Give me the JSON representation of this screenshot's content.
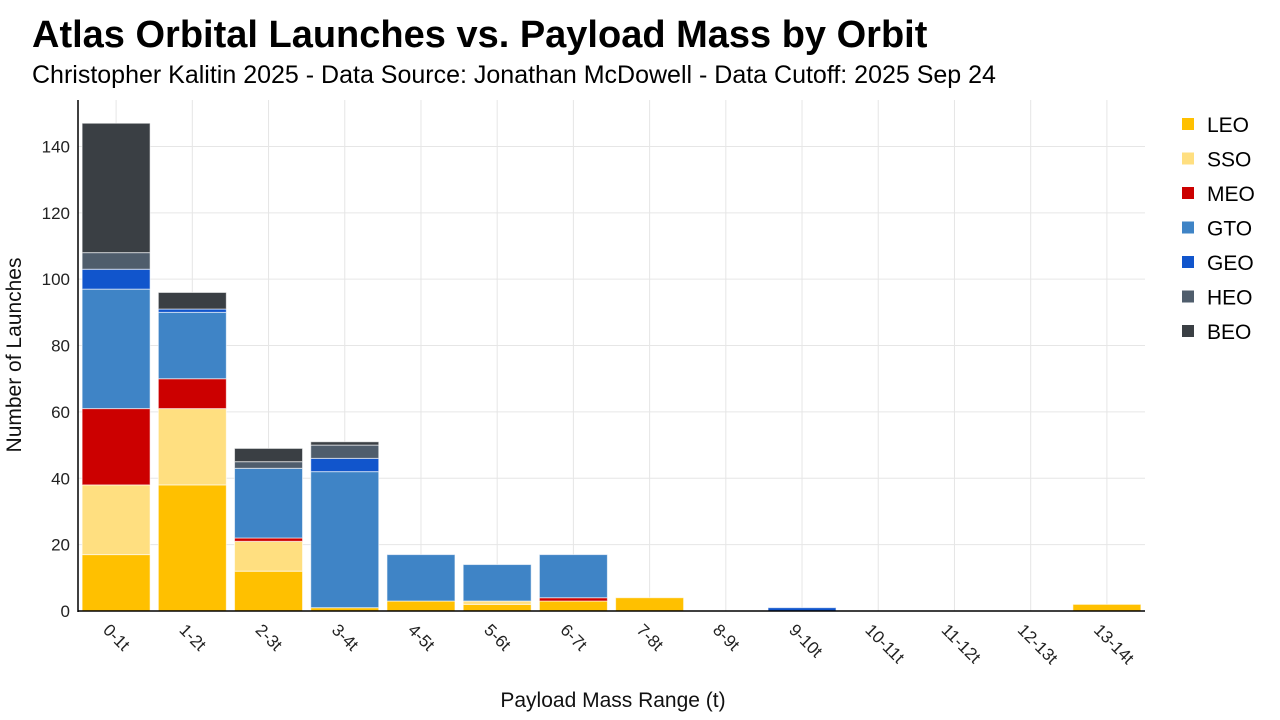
{
  "chart_data": {
    "type": "bar",
    "stacked": true,
    "title": "Atlas Orbital Launches vs. Payload Mass by Orbit",
    "subtitle": "Christopher Kalitin 2025 - Data Source: Jonathan McDowell - Data Cutoff: 2025 Sep 24",
    "xlabel": "Payload Mass Range (t)",
    "ylabel": "Number of Launches",
    "ylim": [
      0,
      154
    ],
    "yticks": [
      0,
      20,
      40,
      60,
      80,
      100,
      120,
      140
    ],
    "grid": true,
    "legend_position": "right",
    "categories": [
      "0-1t",
      "1-2t",
      "2-3t",
      "3-4t",
      "4-5t",
      "5-6t",
      "6-7t",
      "7-8t",
      "8-9t",
      "9-10t",
      "10-11t",
      "11-12t",
      "12-13t",
      "13-14t"
    ],
    "series": [
      {
        "name": "LEO",
        "color": "#FFC000",
        "values": [
          17,
          38,
          12,
          1,
          3,
          2,
          3,
          4,
          0,
          0,
          0,
          0,
          0,
          2
        ]
      },
      {
        "name": "SSO",
        "color": "#FFDF80",
        "values": [
          21,
          23,
          9,
          0,
          0,
          1,
          0,
          0,
          0,
          0,
          0,
          0,
          0,
          0
        ]
      },
      {
        "name": "MEO",
        "color": "#CC0000",
        "values": [
          23,
          9,
          1,
          0,
          0,
          0,
          1,
          0,
          0,
          0,
          0,
          0,
          0,
          0
        ]
      },
      {
        "name": "GTO",
        "color": "#3F84C6",
        "values": [
          36,
          20,
          21,
          41,
          14,
          11,
          13,
          0,
          0,
          0,
          0,
          0,
          0,
          0
        ]
      },
      {
        "name": "GEO",
        "color": "#1155CC",
        "values": [
          6,
          1,
          0,
          4,
          0,
          0,
          0,
          0,
          0,
          1,
          0,
          0,
          0,
          0
        ]
      },
      {
        "name": "HEO",
        "color": "#4F5D6C",
        "values": [
          5,
          0,
          2,
          4,
          0,
          0,
          0,
          0,
          0,
          0,
          0,
          0,
          0,
          0
        ]
      },
      {
        "name": "BEO",
        "color": "#3A3F44",
        "values": [
          39,
          5,
          4,
          1,
          0,
          0,
          0,
          0,
          0,
          0,
          0,
          0,
          0,
          0
        ]
      }
    ]
  }
}
